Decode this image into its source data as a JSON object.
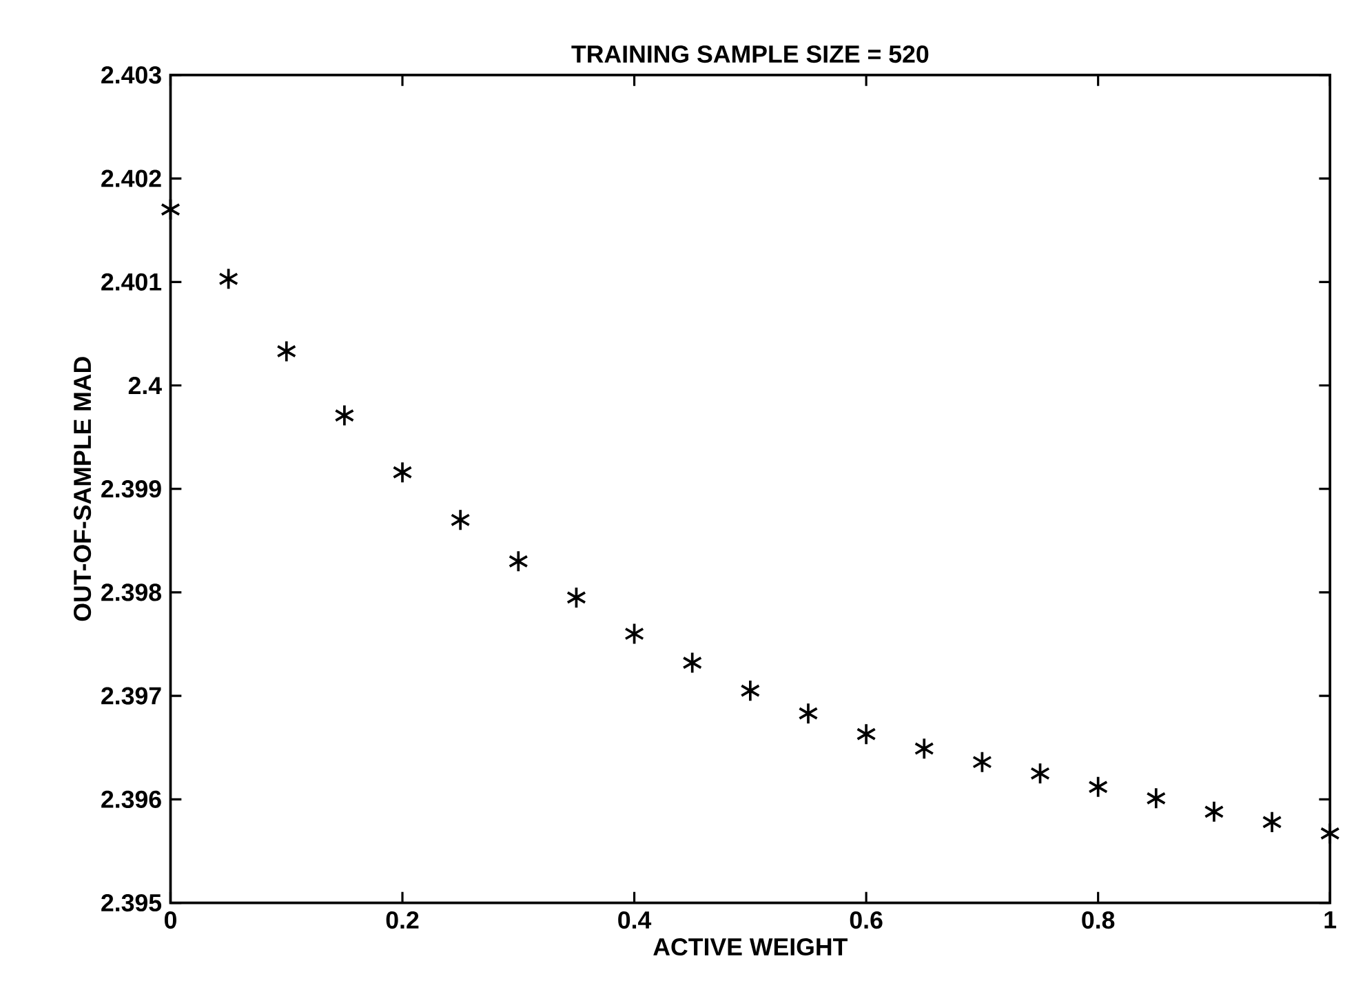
{
  "chart_data": {
    "type": "scatter",
    "title": "TRAINING SAMPLE SIZE = 520",
    "xlabel": "ACTIVE WEIGHT",
    "ylabel": "OUT-OF-SAMPLE MAD",
    "x": [
      0,
      0.05,
      0.1,
      0.15,
      0.2,
      0.25,
      0.3,
      0.35,
      0.4,
      0.45,
      0.5,
      0.55,
      0.6,
      0.65,
      0.7,
      0.75,
      0.8,
      0.85,
      0.9,
      0.95,
      1.0
    ],
    "series": [
      {
        "color": "#000000",
        "values": [
          2.4017,
          2.40103,
          2.40033,
          2.39971,
          2.39916,
          2.3987,
          2.3983,
          2.39795,
          2.3976,
          2.39732,
          2.39705,
          2.39683,
          2.39663,
          2.39649,
          2.39636,
          2.39625,
          2.39612,
          2.39601,
          2.39588,
          2.39578,
          2.39567
        ]
      }
    ],
    "xlim": [
      0,
      1
    ],
    "xticks": [
      0,
      0.2,
      0.4,
      0.6,
      0.8,
      1
    ],
    "ylim": [
      2.395,
      2.403
    ],
    "yticks": [
      2.395,
      2.396,
      2.397,
      2.398,
      2.399,
      2.4,
      2.401,
      2.402,
      2.403
    ],
    "marker": "cross"
  }
}
